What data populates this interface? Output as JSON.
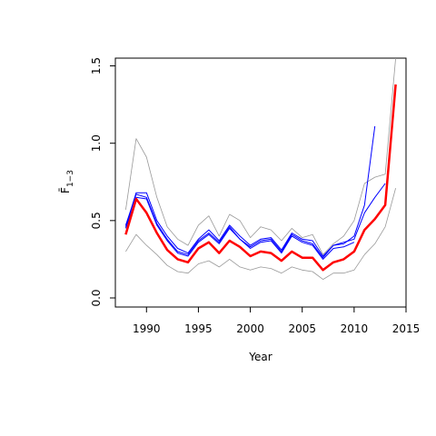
{
  "chart_data": {
    "type": "line",
    "title": "",
    "xlabel": "Year",
    "ylabel": "F̄",
    "ylabel_sub": "1−3",
    "xlim": [
      1987,
      2015
    ],
    "ylim": [
      0,
      1.55
    ],
    "xticks": [
      1990,
      1995,
      2000,
      2005,
      2010,
      2015
    ],
    "yticks": [
      0.0,
      0.5,
      1.0,
      1.5
    ],
    "ytick_labels": [
      "0.0",
      "0.5",
      "1.0",
      "1.5"
    ],
    "grid": false,
    "legend": "none",
    "series": [
      {
        "role": "upper-bound",
        "color": "#999999",
        "x": [
          1988,
          1989,
          1990,
          1991,
          1992,
          1993,
          1994,
          1995,
          1996,
          1997,
          1998,
          1999,
          2000,
          2001,
          2002,
          2003,
          2004,
          2005,
          2006,
          2007,
          2008,
          2009,
          2010,
          2011,
          2012,
          2013,
          2014
        ],
        "y": [
          0.57,
          1.03,
          0.91,
          0.65,
          0.46,
          0.38,
          0.34,
          0.47,
          0.53,
          0.4,
          0.54,
          0.5,
          0.39,
          0.46,
          0.44,
          0.37,
          0.45,
          0.39,
          0.41,
          0.28,
          0.35,
          0.4,
          0.5,
          0.74,
          0.78,
          0.8,
          1.55
        ]
      },
      {
        "role": "lower-bound",
        "color": "#999999",
        "x": [
          1988,
          1989,
          1990,
          1991,
          1992,
          1993,
          1994,
          1995,
          1996,
          1997,
          1998,
          1999,
          2000,
          2001,
          2002,
          2003,
          2004,
          2005,
          2006,
          2007,
          2008,
          2009,
          2010,
          2011,
          2012,
          2013,
          2014
        ],
        "y": [
          0.3,
          0.41,
          0.34,
          0.28,
          0.21,
          0.17,
          0.16,
          0.22,
          0.24,
          0.2,
          0.25,
          0.2,
          0.18,
          0.2,
          0.19,
          0.16,
          0.2,
          0.18,
          0.17,
          0.12,
          0.16,
          0.16,
          0.18,
          0.28,
          0.35,
          0.46,
          0.71
        ]
      },
      {
        "role": "retro-1",
        "color": "#0000ff",
        "x": [
          1988,
          1989,
          1990,
          1991,
          1992,
          1993,
          1994,
          1995,
          1996,
          1997,
          1998,
          1999,
          2000,
          2001,
          2002,
          2003,
          2004,
          2005,
          2006,
          2007,
          2008,
          2009,
          2010,
          2011,
          2012
        ],
        "y": [
          0.47,
          0.67,
          0.65,
          0.48,
          0.38,
          0.3,
          0.28,
          0.37,
          0.42,
          0.36,
          0.46,
          0.38,
          0.33,
          0.37,
          0.38,
          0.3,
          0.41,
          0.37,
          0.35,
          0.26,
          0.34,
          0.35,
          0.4,
          0.6,
          1.11
        ]
      },
      {
        "role": "retro-2",
        "color": "#0000ff",
        "x": [
          1988,
          1989,
          1990,
          1991,
          1992,
          1993,
          1994,
          1995,
          1996,
          1997,
          1998,
          1999,
          2000,
          2001,
          2002,
          2003,
          2004,
          2005,
          2006,
          2007,
          2008,
          2009,
          2010,
          2011,
          2012,
          2013
        ],
        "y": [
          0.46,
          0.68,
          0.68,
          0.5,
          0.4,
          0.32,
          0.29,
          0.38,
          0.44,
          0.37,
          0.47,
          0.4,
          0.34,
          0.38,
          0.39,
          0.31,
          0.42,
          0.38,
          0.37,
          0.27,
          0.34,
          0.36,
          0.38,
          0.55,
          0.65,
          0.74
        ]
      },
      {
        "role": "retro-3",
        "color": "#0000ff",
        "x": [
          1988,
          1989,
          1990,
          1991,
          1992,
          1993,
          1994,
          1995,
          1996,
          1997,
          1998,
          1999,
          2000,
          2001,
          2002,
          2003,
          2004,
          2005,
          2006,
          2007,
          2008,
          2009,
          2010
        ],
        "y": [
          0.45,
          0.65,
          0.64,
          0.47,
          0.37,
          0.29,
          0.27,
          0.36,
          0.41,
          0.35,
          0.45,
          0.38,
          0.32,
          0.36,
          0.37,
          0.29,
          0.4,
          0.36,
          0.34,
          0.25,
          0.32,
          0.33,
          0.36
        ]
      },
      {
        "role": "estimate",
        "color": "#ff0000",
        "x": [
          1988,
          1989,
          1990,
          1991,
          1992,
          1993,
          1994,
          1995,
          1996,
          1997,
          1998,
          1999,
          2000,
          2001,
          2002,
          2003,
          2004,
          2005,
          2006,
          2007,
          2008,
          2009,
          2010,
          2011,
          2012,
          2013,
          2014
        ],
        "y": [
          0.41,
          0.64,
          0.55,
          0.42,
          0.31,
          0.25,
          0.23,
          0.32,
          0.36,
          0.29,
          0.37,
          0.33,
          0.27,
          0.3,
          0.29,
          0.24,
          0.3,
          0.26,
          0.26,
          0.18,
          0.23,
          0.25,
          0.3,
          0.44,
          0.51,
          0.6,
          1.38
        ]
      }
    ]
  }
}
